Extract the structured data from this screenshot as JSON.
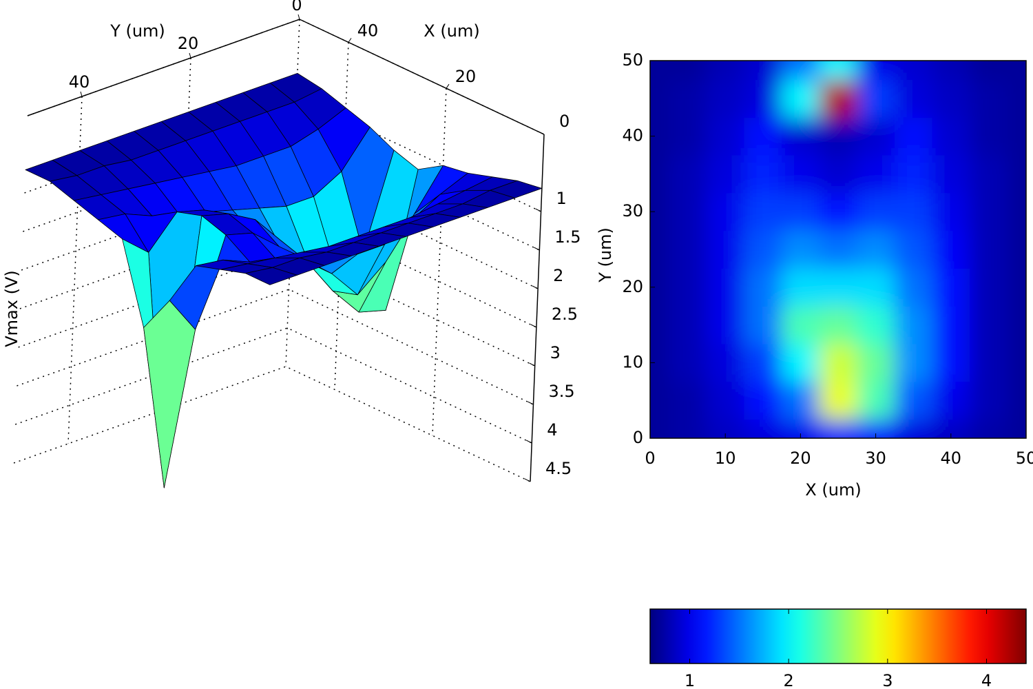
{
  "chart_data": [
    {
      "type": "surface",
      "xlabel": "X (um)",
      "ylabel": "Y (um)",
      "zlabel": "Vmax (V)",
      "x": [
        0,
        5,
        10,
        15,
        20,
        25,
        30,
        35,
        40,
        45,
        50
      ],
      "y": [
        0,
        5,
        10,
        15,
        20,
        25,
        30,
        35,
        40,
        45,
        50
      ],
      "z": [
        [
          0.7,
          0.75,
          0.85,
          0.95,
          1.0,
          1.2,
          1.1,
          0.95,
          0.85,
          0.75,
          0.7
        ],
        [
          0.7,
          0.75,
          0.9,
          1.1,
          1.5,
          2.9,
          2.3,
          1.4,
          1.0,
          0.8,
          0.7
        ],
        [
          0.7,
          0.8,
          0.95,
          1.3,
          2.0,
          2.8,
          2.4,
          1.6,
          1.1,
          0.8,
          0.7
        ],
        [
          0.7,
          0.8,
          1.0,
          1.5,
          2.3,
          2.4,
          2.2,
          1.6,
          1.1,
          0.8,
          0.7
        ],
        [
          0.7,
          0.8,
          1.0,
          1.5,
          1.9,
          1.9,
          1.9,
          1.5,
          1.1,
          0.8,
          0.7
        ],
        [
          0.7,
          0.8,
          1.0,
          1.4,
          1.6,
          1.5,
          1.6,
          1.4,
          1.05,
          0.8,
          0.7
        ],
        [
          0.7,
          0.8,
          1.0,
          1.3,
          1.3,
          1.1,
          1.3,
          1.3,
          1.0,
          0.8,
          0.7
        ],
        [
          0.7,
          0.8,
          0.95,
          1.2,
          1.0,
          0.9,
          1.0,
          1.2,
          0.95,
          0.8,
          0.7
        ],
        [
          0.7,
          0.75,
          0.9,
          1.1,
          0.9,
          0.8,
          0.9,
          1.1,
          0.9,
          0.75,
          0.7
        ],
        [
          0.7,
          0.75,
          0.85,
          0.95,
          2.0,
          4.2,
          1.3,
          0.95,
          0.85,
          0.75,
          0.7
        ],
        [
          0.7,
          0.7,
          0.8,
          0.9,
          1.5,
          2.0,
          1.0,
          0.9,
          0.8,
          0.7,
          0.7
        ]
      ],
      "xlim": [
        0,
        50
      ],
      "ylim": [
        0,
        50
      ],
      "zlim": [
        0,
        4.5
      ],
      "xticks": [
        20,
        40
      ],
      "yticks": [
        0,
        20,
        40
      ],
      "zticks": [
        0,
        1,
        1.5,
        2,
        2.5,
        3,
        3.5,
        4,
        4.5
      ],
      "zdir": "reverse",
      "colormap": "jet",
      "clim": [
        0.6,
        4.4
      ],
      "grid": true
    },
    {
      "type": "contour",
      "xlabel": "X (um)",
      "ylabel": "Y (um)",
      "x": [
        0,
        5,
        10,
        15,
        20,
        25,
        30,
        35,
        40,
        45,
        50
      ],
      "y": [
        0,
        5,
        10,
        15,
        20,
        25,
        30,
        35,
        40,
        45,
        50
      ],
      "z": [
        [
          0.7,
          0.75,
          0.85,
          0.95,
          1.0,
          1.2,
          1.1,
          0.95,
          0.85,
          0.75,
          0.7
        ],
        [
          0.7,
          0.75,
          0.9,
          1.1,
          1.5,
          2.9,
          2.3,
          1.4,
          1.0,
          0.8,
          0.7
        ],
        [
          0.7,
          0.8,
          0.95,
          1.3,
          2.0,
          2.8,
          2.4,
          1.6,
          1.1,
          0.8,
          0.7
        ],
        [
          0.7,
          0.8,
          1.0,
          1.5,
          2.3,
          2.4,
          2.2,
          1.6,
          1.1,
          0.8,
          0.7
        ],
        [
          0.7,
          0.8,
          1.0,
          1.5,
          1.9,
          1.9,
          1.9,
          1.5,
          1.1,
          0.8,
          0.7
        ],
        [
          0.7,
          0.8,
          1.0,
          1.4,
          1.6,
          1.5,
          1.6,
          1.4,
          1.05,
          0.8,
          0.7
        ],
        [
          0.7,
          0.8,
          1.0,
          1.3,
          1.3,
          1.1,
          1.3,
          1.3,
          1.0,
          0.8,
          0.7
        ],
        [
          0.7,
          0.8,
          0.95,
          1.2,
          1.0,
          0.9,
          1.0,
          1.2,
          0.95,
          0.8,
          0.7
        ],
        [
          0.7,
          0.75,
          0.9,
          1.1,
          0.9,
          0.8,
          0.9,
          1.1,
          0.9,
          0.75,
          0.7
        ],
        [
          0.7,
          0.75,
          0.85,
          0.95,
          2.0,
          4.2,
          1.3,
          0.95,
          0.85,
          0.75,
          0.7
        ],
        [
          0.7,
          0.7,
          0.8,
          0.9,
          1.5,
          2.0,
          1.0,
          0.9,
          0.8,
          0.7,
          0.7
        ]
      ],
      "xlim": [
        0,
        50
      ],
      "ylim": [
        0,
        50
      ],
      "xticks": [
        0,
        10,
        20,
        30,
        40,
        50
      ],
      "yticks": [
        0,
        10,
        20,
        30,
        40,
        50
      ],
      "colormap": "jet",
      "clim": [
        0.6,
        4.4
      ]
    },
    {
      "type": "colorbar",
      "colormap": "jet",
      "clim": [
        0.6,
        4.4
      ],
      "ticks": [
        1,
        2,
        3,
        4
      ]
    }
  ]
}
